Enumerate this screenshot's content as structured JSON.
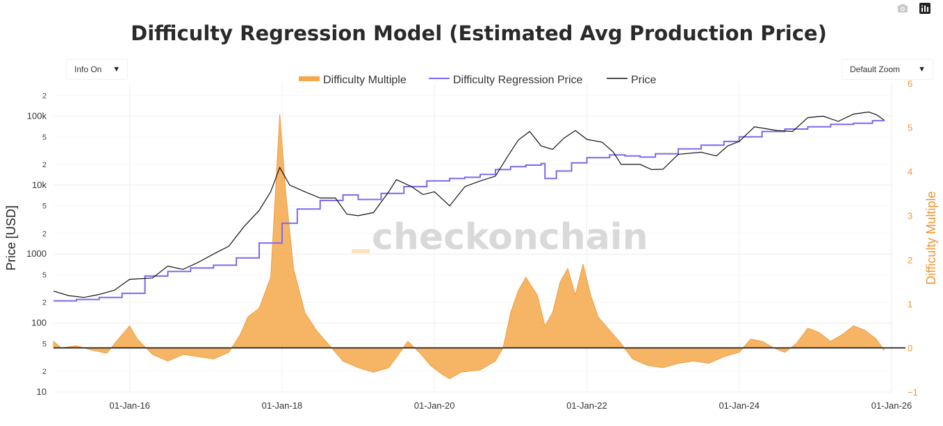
{
  "chart_data": {
    "type": "line",
    "title": "Difficulty Regression Model (Estimated Avg Production Price)",
    "ylabel": "Price [USD]",
    "y2label": "Difficulty Multiple",
    "y_scale": "log",
    "ylim": [
      10,
      300000
    ],
    "y2lim": [
      -1,
      6
    ],
    "xlim": [
      "2015-01-01",
      "2026-01-01"
    ],
    "x_ticks": [
      "01-Jan-16",
      "01-Jan-18",
      "01-Jan-20",
      "01-Jan-22",
      "01-Jan-24",
      "01-Jan-26"
    ],
    "y_ticks_major": [
      "10",
      "100",
      "1000",
      "10k",
      "100k"
    ],
    "y_ticks_minor": [
      "2",
      "5"
    ],
    "y2_ticks": [
      "−1",
      "0",
      "1",
      "2",
      "3",
      "4",
      "5",
      "6"
    ],
    "legend_position": "top-center",
    "series": [
      {
        "name": "Difficulty Multiple",
        "axis": "y2",
        "style": "area",
        "color": "#f5a84a",
        "points": [
          [
            2015.0,
            0.15
          ],
          [
            2015.1,
            0.0
          ],
          [
            2015.3,
            0.05
          ],
          [
            2015.5,
            -0.05
          ],
          [
            2015.7,
            -0.12
          ],
          [
            2015.85,
            0.2
          ],
          [
            2016.0,
            0.5
          ],
          [
            2016.1,
            0.2
          ],
          [
            2016.3,
            -0.15
          ],
          [
            2016.5,
            -0.3
          ],
          [
            2016.7,
            -0.15
          ],
          [
            2016.9,
            -0.2
          ],
          [
            2017.1,
            -0.25
          ],
          [
            2017.3,
            -0.1
          ],
          [
            2017.45,
            0.3
          ],
          [
            2017.55,
            0.7
          ],
          [
            2017.7,
            0.9
          ],
          [
            2017.85,
            1.6
          ],
          [
            2017.97,
            5.3
          ],
          [
            2018.05,
            3.5
          ],
          [
            2018.15,
            1.8
          ],
          [
            2018.3,
            0.8
          ],
          [
            2018.45,
            0.4
          ],
          [
            2018.6,
            0.1
          ],
          [
            2018.8,
            -0.3
          ],
          [
            2019.0,
            -0.45
          ],
          [
            2019.2,
            -0.55
          ],
          [
            2019.4,
            -0.45
          ],
          [
            2019.55,
            -0.1
          ],
          [
            2019.65,
            0.15
          ],
          [
            2019.8,
            -0.1
          ],
          [
            2019.95,
            -0.4
          ],
          [
            2020.1,
            -0.6
          ],
          [
            2020.2,
            -0.7
          ],
          [
            2020.35,
            -0.55
          ],
          [
            2020.6,
            -0.5
          ],
          [
            2020.8,
            -0.3
          ],
          [
            2020.9,
            0.0
          ],
          [
            2021.0,
            0.8
          ],
          [
            2021.1,
            1.3
          ],
          [
            2021.2,
            1.6
          ],
          [
            2021.35,
            1.2
          ],
          [
            2021.45,
            0.5
          ],
          [
            2021.55,
            0.8
          ],
          [
            2021.65,
            1.5
          ],
          [
            2021.75,
            1.8
          ],
          [
            2021.85,
            1.2
          ],
          [
            2021.95,
            1.9
          ],
          [
            2022.05,
            1.2
          ],
          [
            2022.15,
            0.7
          ],
          [
            2022.3,
            0.4
          ],
          [
            2022.45,
            0.1
          ],
          [
            2022.6,
            -0.25
          ],
          [
            2022.8,
            -0.4
          ],
          [
            2023.0,
            -0.45
          ],
          [
            2023.2,
            -0.35
          ],
          [
            2023.4,
            -0.3
          ],
          [
            2023.6,
            -0.35
          ],
          [
            2023.8,
            -0.2
          ],
          [
            2024.0,
            -0.1
          ],
          [
            2024.15,
            0.2
          ],
          [
            2024.3,
            0.15
          ],
          [
            2024.45,
            0.0
          ],
          [
            2024.6,
            -0.1
          ],
          [
            2024.75,
            0.1
          ],
          [
            2024.9,
            0.45
          ],
          [
            2025.05,
            0.35
          ],
          [
            2025.2,
            0.15
          ],
          [
            2025.35,
            0.3
          ],
          [
            2025.5,
            0.5
          ],
          [
            2025.65,
            0.4
          ],
          [
            2025.8,
            0.2
          ],
          [
            2025.9,
            -0.05
          ]
        ]
      },
      {
        "name": "Difficulty Regression Price",
        "axis": "y",
        "style": "step",
        "color": "#7b68ee",
        "points": [
          [
            2015.0,
            210
          ],
          [
            2015.3,
            220
          ],
          [
            2015.6,
            235
          ],
          [
            2015.9,
            270
          ],
          [
            2016.2,
            480
          ],
          [
            2016.5,
            560
          ],
          [
            2016.8,
            630
          ],
          [
            2017.1,
            690
          ],
          [
            2017.4,
            880
          ],
          [
            2017.7,
            1450
          ],
          [
            2018.0,
            2800
          ],
          [
            2018.2,
            4500
          ],
          [
            2018.5,
            6000
          ],
          [
            2018.8,
            7200
          ],
          [
            2019.0,
            6200
          ],
          [
            2019.3,
            7600
          ],
          [
            2019.6,
            9500
          ],
          [
            2019.9,
            11500
          ],
          [
            2020.2,
            12500
          ],
          [
            2020.4,
            13000
          ],
          [
            2020.6,
            14300
          ],
          [
            2020.8,
            16800
          ],
          [
            2021.0,
            18500
          ],
          [
            2021.2,
            19500
          ],
          [
            2021.4,
            20500
          ],
          [
            2021.45,
            12500
          ],
          [
            2021.6,
            16000
          ],
          [
            2021.8,
            21000
          ],
          [
            2022.0,
            25000
          ],
          [
            2022.3,
            27500
          ],
          [
            2022.5,
            26500
          ],
          [
            2022.7,
            25500
          ],
          [
            2022.9,
            28500
          ],
          [
            2023.2,
            33500
          ],
          [
            2023.5,
            38000
          ],
          [
            2023.8,
            43000
          ],
          [
            2024.0,
            50000
          ],
          [
            2024.3,
            60000
          ],
          [
            2024.6,
            65000
          ],
          [
            2024.9,
            70000
          ],
          [
            2025.2,
            76000
          ],
          [
            2025.5,
            79000
          ],
          [
            2025.75,
            86000
          ],
          [
            2025.9,
            88000
          ]
        ]
      },
      {
        "name": "Price",
        "axis": "y",
        "style": "line",
        "color": "#111111",
        "points": [
          [
            2015.0,
            290
          ],
          [
            2015.2,
            250
          ],
          [
            2015.4,
            235
          ],
          [
            2015.6,
            260
          ],
          [
            2015.8,
            300
          ],
          [
            2016.0,
            430
          ],
          [
            2016.3,
            450
          ],
          [
            2016.5,
            670
          ],
          [
            2016.7,
            600
          ],
          [
            2016.9,
            760
          ],
          [
            2017.1,
            1000
          ],
          [
            2017.3,
            1300
          ],
          [
            2017.5,
            2500
          ],
          [
            2017.7,
            4300
          ],
          [
            2017.85,
            8000
          ],
          [
            2017.97,
            18000
          ],
          [
            2018.1,
            10000
          ],
          [
            2018.3,
            8000
          ],
          [
            2018.5,
            6500
          ],
          [
            2018.7,
            6500
          ],
          [
            2018.85,
            3800
          ],
          [
            2019.0,
            3600
          ],
          [
            2019.2,
            4000
          ],
          [
            2019.4,
            8000
          ],
          [
            2019.5,
            12000
          ],
          [
            2019.7,
            9500
          ],
          [
            2019.85,
            7300
          ],
          [
            2020.0,
            8000
          ],
          [
            2020.2,
            5000
          ],
          [
            2020.4,
            9500
          ],
          [
            2020.6,
            11500
          ],
          [
            2020.8,
            13500
          ],
          [
            2020.95,
            25000
          ],
          [
            2021.1,
            45000
          ],
          [
            2021.25,
            60000
          ],
          [
            2021.4,
            37000
          ],
          [
            2021.55,
            33000
          ],
          [
            2021.7,
            48000
          ],
          [
            2021.85,
            62000
          ],
          [
            2022.0,
            46000
          ],
          [
            2022.2,
            42000
          ],
          [
            2022.35,
            30000
          ],
          [
            2022.45,
            20000
          ],
          [
            2022.7,
            20000
          ],
          [
            2022.85,
            16800
          ],
          [
            2023.0,
            17000
          ],
          [
            2023.2,
            28000
          ],
          [
            2023.5,
            30000
          ],
          [
            2023.7,
            26500
          ],
          [
            2023.85,
            37000
          ],
          [
            2024.0,
            43000
          ],
          [
            2024.2,
            70000
          ],
          [
            2024.5,
            62000
          ],
          [
            2024.7,
            60000
          ],
          [
            2024.9,
            95000
          ],
          [
            2025.1,
            100000
          ],
          [
            2025.3,
            84000
          ],
          [
            2025.5,
            107000
          ],
          [
            2025.7,
            115000
          ],
          [
            2025.8,
            105000
          ],
          [
            2025.9,
            88000
          ]
        ]
      }
    ]
  },
  "controls": {
    "info_toggle": "Info On",
    "zoom_select": "Default Zoom",
    "camera_icon": "camera-icon",
    "logo_icon": "plotly-logo-icon"
  },
  "watermark": "checkonchain",
  "colors": {
    "difficulty_multiple": "#f5a84a",
    "regression_price": "#7b68ee",
    "price": "#111111",
    "secondary_axis": "#f0932b"
  }
}
